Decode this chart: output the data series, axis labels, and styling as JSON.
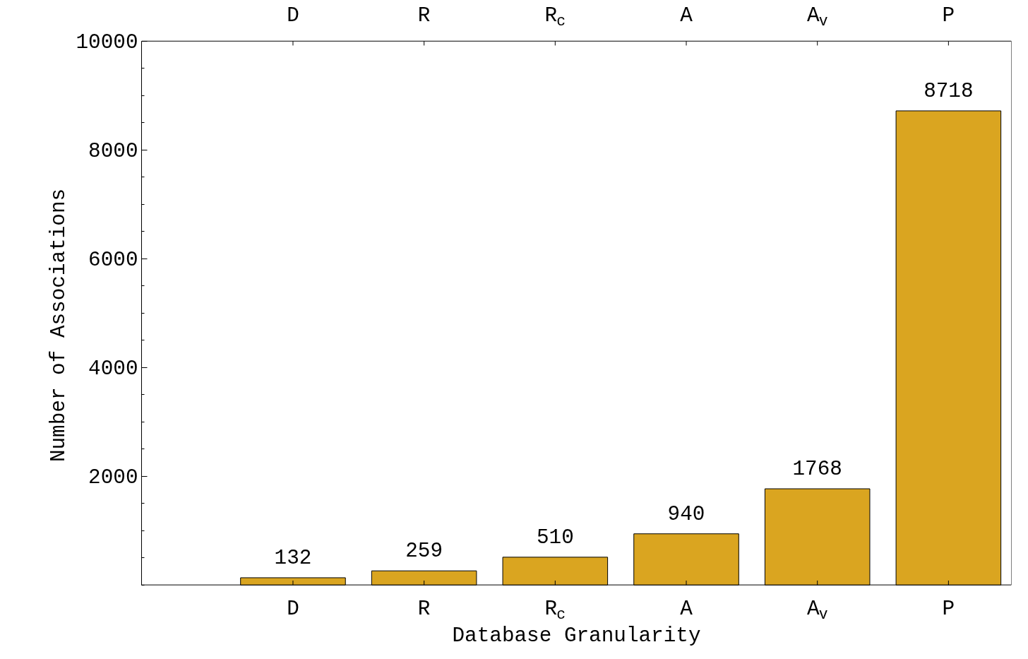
{
  "chart_data": {
    "type": "bar",
    "xlabel": "Database Granularity",
    "ylabel": "Number of Associations",
    "categories": [
      "D",
      "R",
      "R$_{c}$",
      "A",
      "A$_{v}$",
      "P"
    ],
    "values": [
      132,
      259,
      510,
      940,
      1768,
      8718
    ],
    "color": "#daa520",
    "ylim": [
      0,
      10000
    ],
    "yticks": [
      2000,
      4000,
      6000,
      8000,
      10000
    ],
    "data_labels": true,
    "grid": false
  }
}
